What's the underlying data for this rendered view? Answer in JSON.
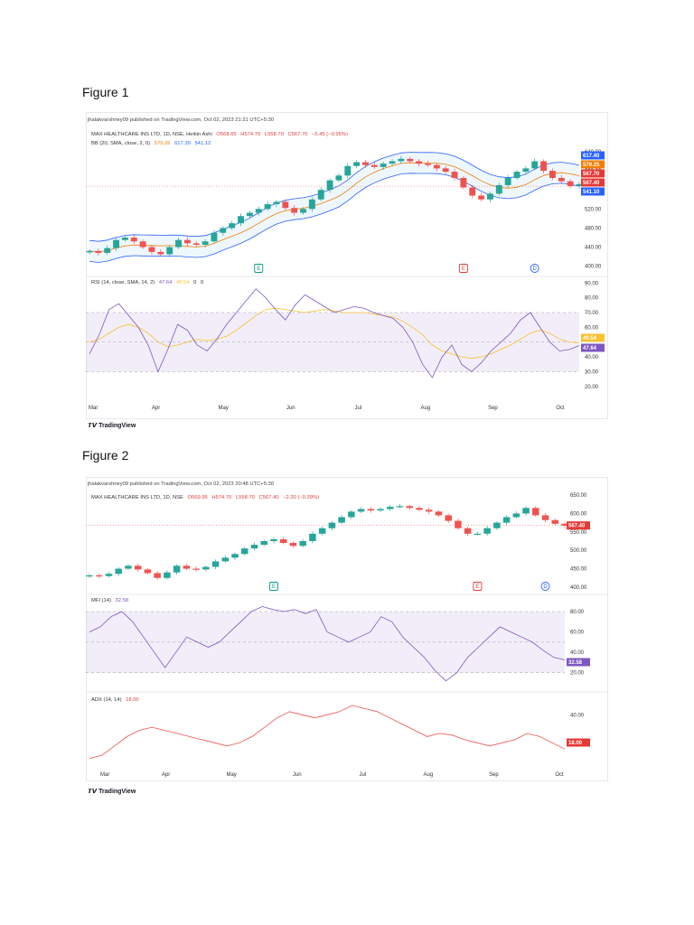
{
  "figures": [
    {
      "title": "Figure 1",
      "published": "jhalakvarshney09 published on TradingView.com, Oct 02, 2023 21:21 UTC+5:30",
      "symbol": "MAX HEALTHCARE INS LTD, 1D, NSE, Heikin Ashi",
      "ohlc": {
        "o": "O568.65",
        "h": "H574.70",
        "l": "L558.70",
        "c": "C567.70",
        "chg": "−5.45 (−0.95%)"
      },
      "bb_label": "BB (20, SMA, close, 2, 0)",
      "bb_vals": [
        "579.26",
        "617.39",
        "541.12"
      ],
      "rsi_label": "RSI (14, close, SMA, 14, 2)",
      "rsi_vals": [
        "47.64",
        "49.54",
        "0",
        "0"
      ],
      "brand": "TradingView"
    },
    {
      "title": "Figure 2",
      "published": "jhalakvarshney09 published on TradingView.com, Oct 02, 2023 20:48 UTC+5:30",
      "symbol": "MAX HEALTHCARE INS LTD, 1D, NSE",
      "ohlc": {
        "o": "O569.95",
        "h": "H574.70",
        "l": "L558.70",
        "c": "C567.40",
        "chg": "−2.20 (−0.39%)"
      },
      "mfi_label": "MFI (14)",
      "mfi_val": "32.58",
      "adx_label": "ADX (14, 14)",
      "adx_val": "18.00",
      "brand": "TradingView"
    }
  ],
  "chart_data": [
    {
      "type": "candlestick",
      "title": "MAX HEALTHCARE INS LTD, 1D, NSE, Heikin Ashi",
      "x_ticks": [
        "Mar",
        "Apr",
        "May",
        "Jun",
        "Jul",
        "Aug",
        "Sep",
        "Oct"
      ],
      "price_ticks": [
        "640.00",
        "600.00",
        "520.00",
        "480.00",
        "440.00",
        "400.00"
      ],
      "price_ylim": [
        390,
        655
      ],
      "price_path": [
        432,
        428,
        438,
        455,
        460,
        452,
        440,
        430,
        425,
        440,
        455,
        448,
        445,
        452,
        470,
        480,
        490,
        505,
        512,
        520,
        530,
        535,
        522,
        512,
        520,
        540,
        560,
        580,
        590,
        610,
        618,
        612,
        608,
        615,
        620,
        625,
        620,
        615,
        612,
        605,
        598,
        585,
        565,
        548,
        540,
        552,
        570,
        585,
        598,
        605,
        620,
        600,
        585,
        578,
        568,
        572
      ],
      "price_labels": [
        {
          "value": "617.40",
          "color": "#2962ff"
        },
        {
          "value": "579.25",
          "color": "#f57c00"
        },
        {
          "value": "567.70",
          "color": "#e53935"
        },
        {
          "value": "567.40",
          "color": "#e53935"
        },
        {
          "value": "541.10",
          "color": "#2962ff"
        }
      ],
      "event_markers": [
        {
          "label": "E",
          "color": "#089981",
          "x_index": 19
        },
        {
          "label": "E",
          "color": "#e53935",
          "x_index": 42
        },
        {
          "label": "D",
          "color": "#2962ff",
          "x_index": 50
        }
      ],
      "rsi_ticks": [
        "90.00",
        "80.00",
        "70.00",
        "60.00",
        "40.00",
        "30.00",
        "20.00"
      ],
      "rsi_ylim": [
        15,
        92
      ],
      "rsi_values": [
        42,
        55,
        72,
        76,
        68,
        60,
        48,
        30,
        45,
        62,
        58,
        48,
        44,
        52,
        62,
        70,
        78,
        86,
        80,
        72,
        65,
        75,
        82,
        78,
        74,
        70,
        72,
        74,
        73,
        70,
        68,
        66,
        60,
        50,
        35,
        26,
        40,
        48,
        35,
        30,
        36,
        44,
        50,
        56,
        65,
        70,
        60,
        50,
        44,
        45,
        47.64
      ],
      "rsi_ma_values": [
        50,
        52,
        56,
        60,
        62,
        60,
        56,
        50,
        47,
        48,
        50,
        52,
        51,
        52,
        54,
        58,
        63,
        68,
        72,
        73,
        72,
        71,
        70,
        71,
        72,
        71,
        70,
        70,
        70,
        69,
        68,
        67,
        64,
        60,
        55,
        48,
        44,
        42,
        40,
        39,
        40,
        42,
        45,
        48,
        52,
        56,
        58,
        56,
        52,
        50,
        49.54
      ],
      "rsi_labels": [
        {
          "value": "49.54",
          "color": "#fbc02d"
        },
        {
          "value": "47.64",
          "color": "#7e57c2"
        }
      ]
    },
    {
      "type": "candlestick",
      "title": "MAX HEALTHCARE INS LTD, 1D, NSE",
      "x_ticks": [
        "Mar",
        "Apr",
        "May",
        "Jun",
        "Jul",
        "Aug",
        "Sep",
        "Oct"
      ],
      "price_ticks": [
        "650.00",
        "600.00",
        "550.00",
        "500.00",
        "450.00",
        "400.00"
      ],
      "price_ylim": [
        395,
        655
      ],
      "price_path": [
        432,
        430,
        436,
        450,
        458,
        448,
        438,
        425,
        440,
        458,
        450,
        448,
        455,
        470,
        480,
        490,
        505,
        515,
        525,
        530,
        520,
        512,
        525,
        545,
        560,
        575,
        590,
        605,
        612,
        608,
        612,
        618,
        620,
        615,
        610,
        605,
        595,
        580,
        560,
        545,
        545,
        560,
        575,
        590,
        600,
        615,
        595,
        582,
        572,
        567
      ],
      "price_labels": [
        {
          "value": "567.40",
          "color": "#e53935"
        }
      ],
      "event_markers": [
        {
          "label": "E",
          "color": "#089981",
          "x_index": 19
        },
        {
          "label": "E",
          "color": "#e53935",
          "x_index": 40
        },
        {
          "label": "D",
          "color": "#2962ff",
          "x_index": 47
        }
      ],
      "mfi_ticks": [
        "80.00",
        "60.00",
        "40.00",
        "20.00"
      ],
      "mfi_ylim": [
        10,
        88
      ],
      "mfi_values": [
        60,
        65,
        75,
        80,
        70,
        55,
        40,
        25,
        40,
        55,
        50,
        45,
        50,
        60,
        70,
        80,
        85,
        82,
        80,
        82,
        78,
        82,
        60,
        55,
        50,
        55,
        60,
        75,
        70,
        55,
        45,
        35,
        22,
        12,
        20,
        35,
        45,
        55,
        65,
        60,
        55,
        50,
        42,
        35,
        32.58
      ],
      "mfi_labels": [
        {
          "value": "32.58",
          "color": "#7e57c2"
        }
      ],
      "adx_ticks": [
        "40.00"
      ],
      "adx_ylim": [
        10,
        50
      ],
      "adx_values": [
        12,
        14,
        20,
        26,
        30,
        32,
        30,
        28,
        26,
        24,
        22,
        20,
        22,
        26,
        32,
        38,
        42,
        40,
        38,
        40,
        42,
        46,
        44,
        42,
        38,
        34,
        30,
        26,
        28,
        27,
        24,
        22,
        20,
        22,
        24,
        28,
        26,
        22,
        18
      ],
      "adx_labels": [
        {
          "value": "18.00",
          "color": "#e53935"
        }
      ]
    }
  ]
}
